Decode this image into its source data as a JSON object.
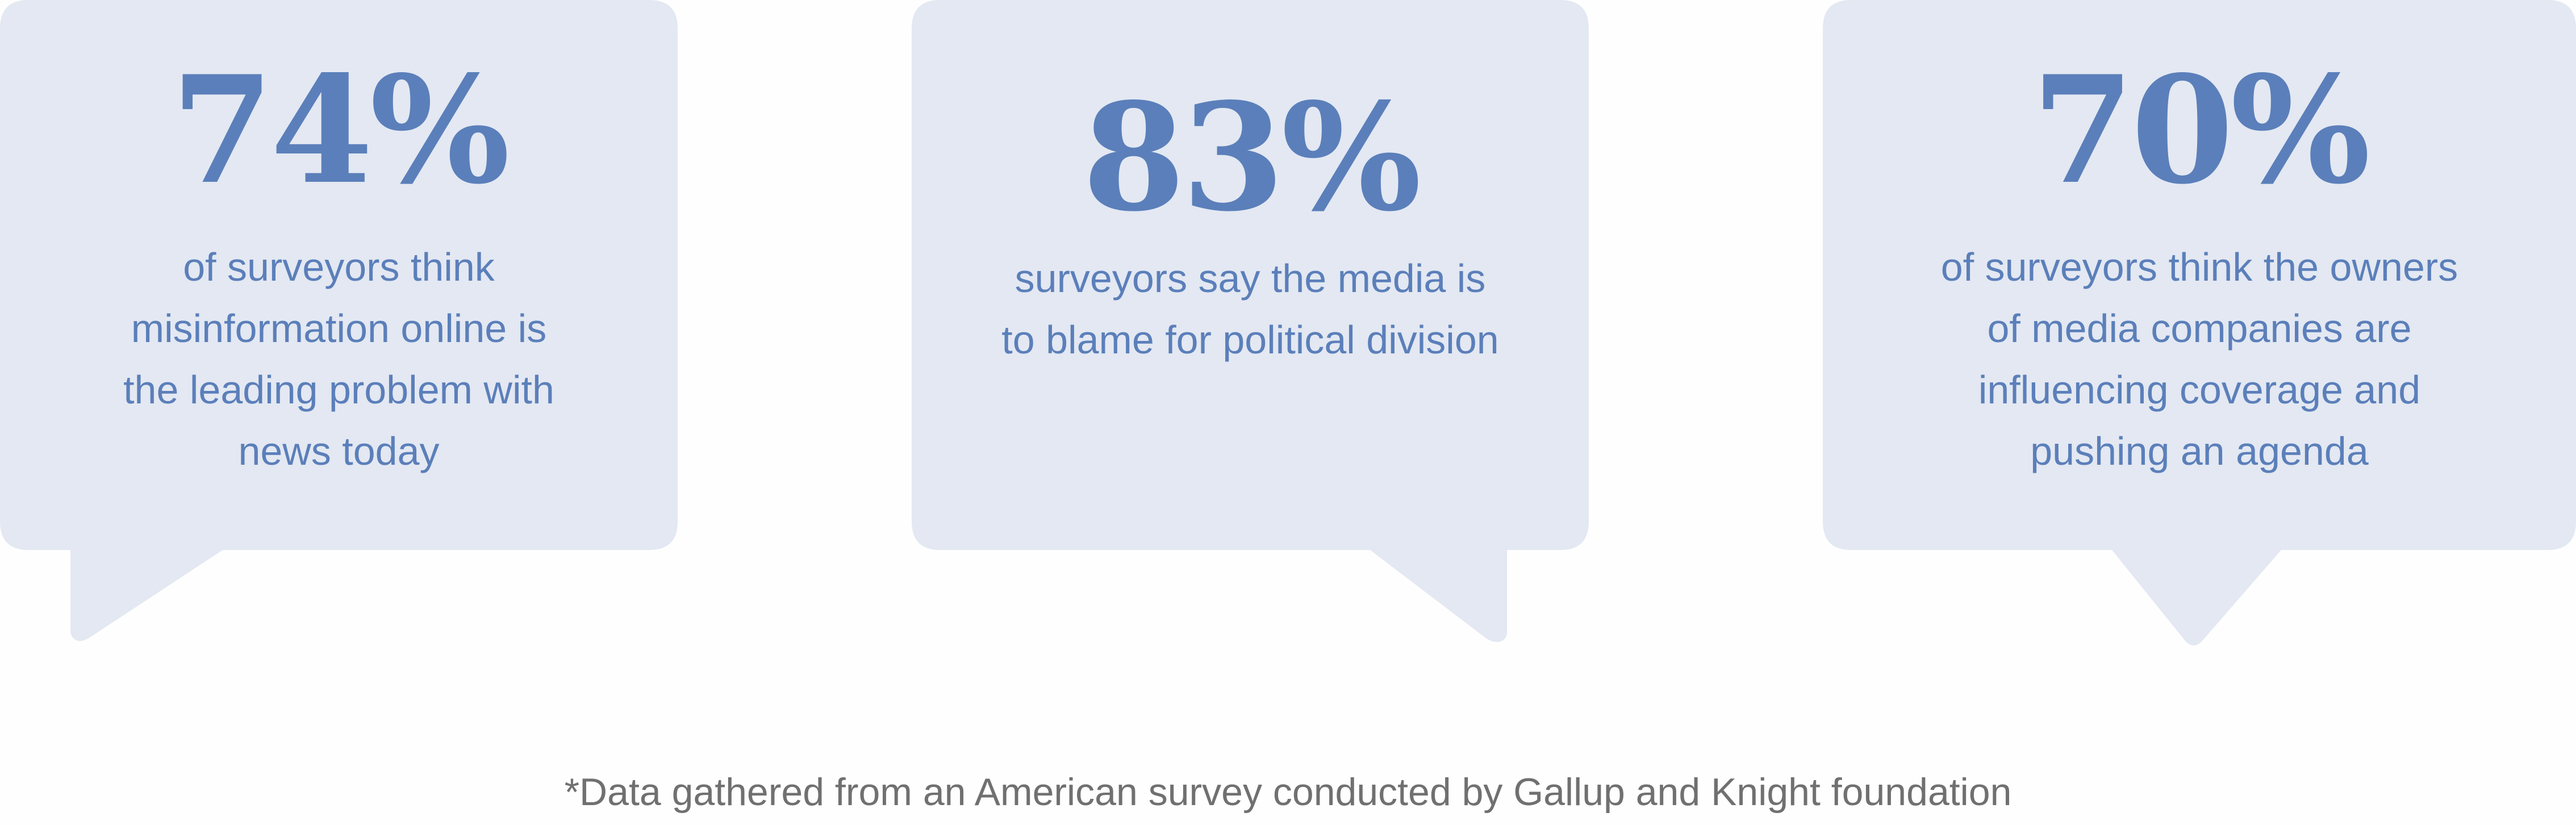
{
  "colors": {
    "bubble": "#e3e8f2",
    "accent": "#5b7fba",
    "footnote": "#707070"
  },
  "stats": [
    {
      "percent": "74%",
      "lines": [
        "of surveyors think",
        "misinformation online is",
        "the leading problem with",
        "news today"
      ]
    },
    {
      "percent": "83%",
      "lines": [
        "surveyors say the media is",
        "to blame for political division"
      ]
    },
    {
      "percent": "70%",
      "lines": [
        "of surveyors think the owners",
        "of media companies are",
        "influencing coverage and",
        "pushing an agenda"
      ]
    }
  ],
  "footnote": "*Data gathered from an American survey conducted by Gallup and Knight foundation"
}
